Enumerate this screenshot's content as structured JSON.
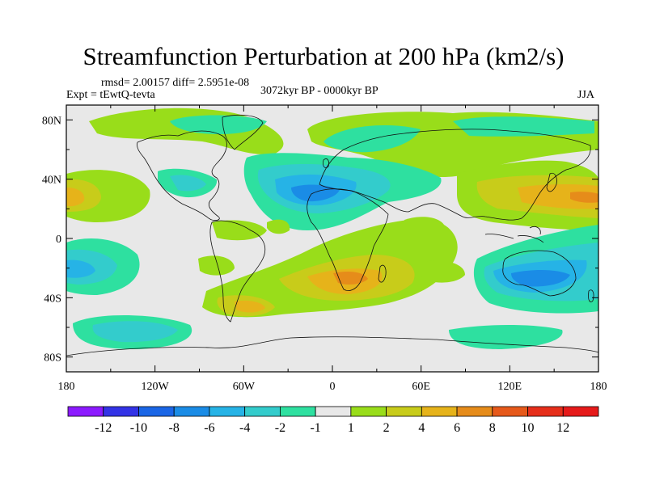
{
  "title": "Streamfunction Perturbation at 200 hPa (km2/s)",
  "stats_line": "rmsd= 2.00157 diff= 2.5951e-08",
  "experiment": "Expt = tEwtQ-tevta",
  "period": "3072kyr BP - 0000kyr BP",
  "season": "JJA",
  "map": {
    "projection": "cylindrical equidistant",
    "lon_range": [
      -180,
      180
    ],
    "lat_range": [
      -90,
      90
    ],
    "x_ticks": [
      "180",
      "120W",
      "60W",
      "0",
      "60E",
      "120E",
      "180"
    ],
    "y_ticks": [
      "80N",
      "40N",
      "0",
      "40S",
      "80S"
    ],
    "background_color": "#e8e8e8"
  },
  "colorbar": {
    "labels": [
      "-12",
      "-10",
      "-8",
      "-6",
      "-4",
      "-2",
      "-1",
      "1",
      "2",
      "4",
      "6",
      "8",
      "10",
      "12"
    ],
    "colors": [
      "#8c1aff",
      "#3333e6",
      "#1a66e6",
      "#1a8ce6",
      "#26b3e6",
      "#33cccc",
      "#2ee0a0",
      "#e8e8e8",
      "#99dd1a",
      "#c8cc1a",
      "#e6b31a",
      "#e68c1a",
      "#e6591a",
      "#e62e1a",
      "#e61a1a"
    ]
  },
  "chart_data": {
    "type": "heatmap",
    "title": "Streamfunction Perturbation at 200 hPa (km2/s)",
    "variable": "Streamfunction perturbation (km2/s)",
    "level": "200 hPa",
    "contour_levels": [
      -12,
      -10,
      -8,
      -6,
      -4,
      -2,
      -1,
      1,
      2,
      4,
      6,
      8,
      10,
      12
    ],
    "features": [
      {
        "region": "North Atlantic / North Africa",
        "sign": "negative",
        "peak": -8
      },
      {
        "region": "South Pacific",
        "sign": "negative",
        "peak": -4
      },
      {
        "region": "Australia / Indian Ocean",
        "sign": "negative",
        "peak": -6
      },
      {
        "region": "Southern Africa",
        "sign": "positive",
        "peak": 6
      },
      {
        "region": "NW Pacific / East Asia",
        "sign": "positive",
        "peak": 6
      },
      {
        "region": "NE Pacific",
        "sign": "positive",
        "peak": 4
      },
      {
        "region": "Southern South America",
        "sign": "positive",
        "peak": 4
      },
      {
        "region": "Southern Ocean",
        "sign": "negative",
        "peak": -2
      }
    ]
  }
}
